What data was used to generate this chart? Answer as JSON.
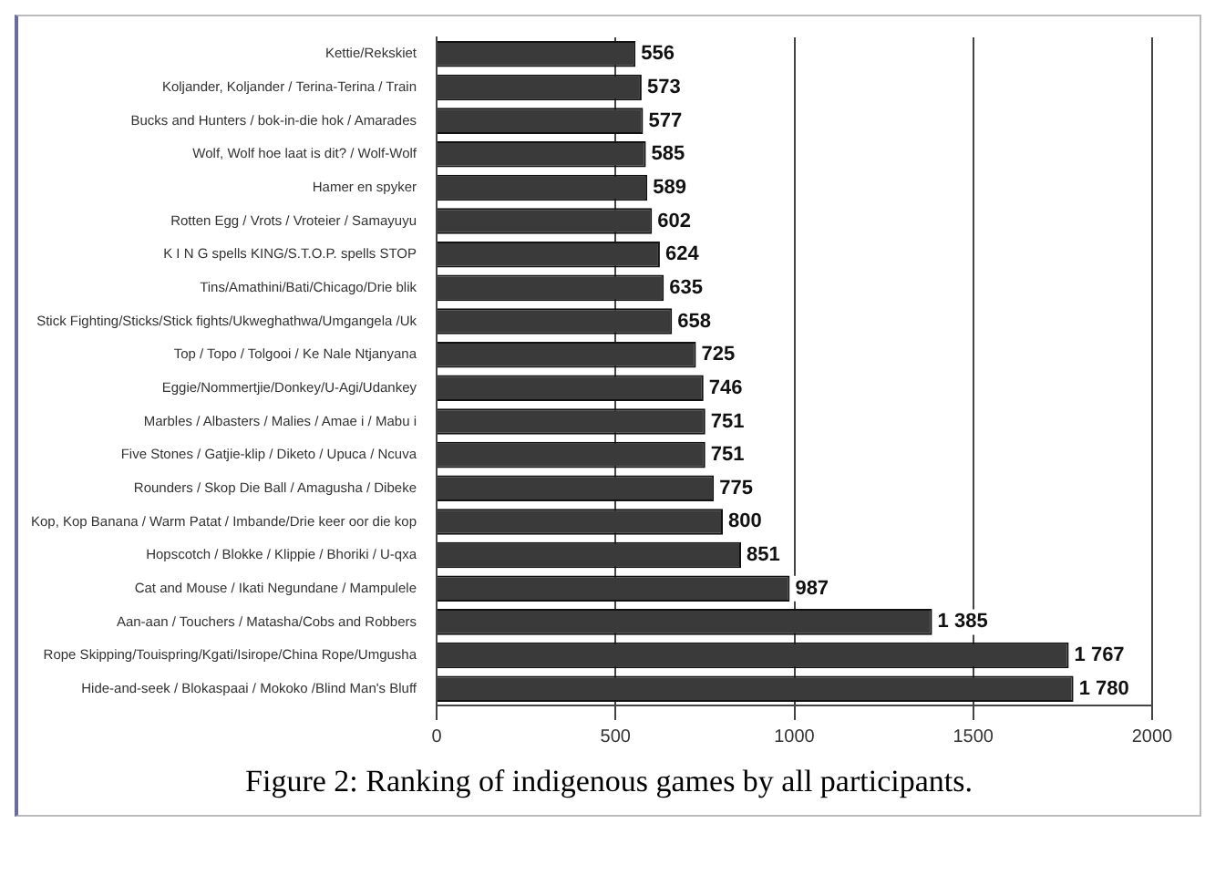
{
  "chart_data": {
    "type": "bar",
    "orientation": "horizontal",
    "annotations": [
      "Figure 2: Ranking of indigenous games by all participants."
    ],
    "categories": [
      "Kettie/Rekskiet",
      "Koljander, Koljander / Terina-Terina / Train",
      "Bucks and Hunters / bok-in-die hok / Amarades",
      "Wolf, Wolf hoe laat is dit? / Wolf-Wolf",
      "Hamer en spyker",
      "Rotten Egg / Vrots / Vroteier / Samayuyu",
      "K I N G spells KING/S.T.O.P. spells STOP",
      "Tins/Amathini/Bati/Chicago/Drie blik",
      "Stick Fighting/Sticks/Stick fights/Ukweghathwa/Umgangela /Uk",
      "Top / Topo / Tolgooi / Ke Nale Ntjanyana",
      "Eggie/Nommertjie/Donkey/U-Agi/Udankey",
      "Marbles / Albasters / Malies / Amae i / Mabu i",
      "Five Stones / Gatjie-klip / Diketo / Upuca / Ncuva",
      "Rounders / Skop Die Ball / Amagusha / Dibeke",
      "Kop, Kop Banana / Warm Patat / Imbande/Drie keer oor die kop",
      "Hopscotch / Blokke / Klippie / Bhoriki / U-qxa",
      "Cat and Mouse / Ikati Negundane / Mampulele",
      "Aan-aan / Touchers / Matasha/Cobs and Robbers",
      "Rope Skipping/Touispring/Kgati/Isirope/China Rope/Umgusha",
      "Hide-and-seek / Blokaspaai / Mokoko /Blind Man's Bluff"
    ],
    "values": [
      556,
      573,
      577,
      585,
      589,
      602,
      624,
      635,
      658,
      725,
      746,
      751,
      751,
      775,
      800,
      851,
      987,
      1385,
      1767,
      1780
    ],
    "value_labels": [
      "556",
      "573",
      "577",
      "585",
      "589",
      "602",
      "624",
      "635",
      "658",
      "725",
      "746",
      "751",
      "751",
      "775",
      "800",
      "851",
      "987",
      "1 385",
      "1 767",
      "1 780"
    ],
    "color": "#3a3a3a",
    "xlim": [
      0,
      2000
    ],
    "xticks": [
      0,
      500,
      1000,
      1500,
      2000
    ],
    "grid": "x",
    "legend": false
  }
}
